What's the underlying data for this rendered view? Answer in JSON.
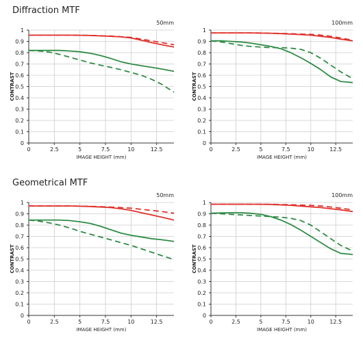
{
  "sections": [
    {
      "title": "Diffraction MTF"
    },
    {
      "title": "Geometrical MTF"
    }
  ],
  "colors": {
    "red": "#e0302a",
    "green": "#2e8b45",
    "grid": "#cccccc",
    "axis": "#333333"
  },
  "chart_data": [
    {
      "type": "line",
      "label": "50mm",
      "section": "Diffraction MTF",
      "xlabel": "IMAGE HEIGHT (mm)",
      "ylabel": "CONTRAST",
      "xlim": [
        0,
        14.2
      ],
      "ylim": [
        0,
        1
      ],
      "xticks": [
        0,
        2.5,
        5,
        7.5,
        10,
        12.5
      ],
      "yticks": [
        0,
        0.1,
        0.2,
        0.3,
        0.4,
        0.5,
        0.6,
        0.7,
        0.8,
        0.9,
        1
      ],
      "grid": true,
      "series": [
        {
          "color": "red",
          "dash": false,
          "x": [
            0,
            2,
            4,
            6,
            8,
            9,
            10,
            11,
            12,
            13,
            14.2
          ],
          "y": [
            0.955,
            0.955,
            0.955,
            0.953,
            0.945,
            0.94,
            0.93,
            0.91,
            0.89,
            0.87,
            0.85
          ]
        },
        {
          "color": "red",
          "dash": true,
          "x": [
            0,
            2,
            4,
            6,
            8,
            9,
            10,
            11,
            12,
            13,
            14.2
          ],
          "y": [
            0.955,
            0.955,
            0.955,
            0.953,
            0.947,
            0.942,
            0.935,
            0.92,
            0.905,
            0.89,
            0.87
          ]
        },
        {
          "color": "green",
          "dash": false,
          "x": [
            0,
            1,
            2,
            3,
            4,
            5,
            6,
            7,
            8,
            9,
            10,
            11,
            12,
            13,
            14.2
          ],
          "y": [
            0.82,
            0.82,
            0.82,
            0.82,
            0.815,
            0.808,
            0.795,
            0.775,
            0.75,
            0.72,
            0.7,
            0.685,
            0.67,
            0.655,
            0.635
          ]
        },
        {
          "color": "green",
          "dash": true,
          "x": [
            0,
            1,
            2,
            3,
            4,
            5,
            6,
            7,
            8,
            9,
            10,
            11,
            12,
            13,
            14.2
          ],
          "y": [
            0.82,
            0.815,
            0.805,
            0.785,
            0.76,
            0.735,
            0.71,
            0.69,
            0.67,
            0.65,
            0.625,
            0.6,
            0.565,
            0.52,
            0.45
          ]
        }
      ]
    },
    {
      "type": "line",
      "label": "100mm",
      "section": "Diffraction MTF",
      "xlabel": "IMAGE HEIGHT (mm)",
      "ylabel": "CONTRAST",
      "xlim": [
        0,
        14.2
      ],
      "ylim": [
        0,
        1
      ],
      "xticks": [
        0,
        2.5,
        5,
        7.5,
        10,
        12.5
      ],
      "yticks": [
        0,
        0.1,
        0.2,
        0.3,
        0.4,
        0.5,
        0.6,
        0.7,
        0.8,
        0.9,
        1
      ],
      "grid": true,
      "series": [
        {
          "color": "red",
          "dash": false,
          "x": [
            0,
            2,
            4,
            6,
            8,
            10,
            11,
            12,
            13,
            14.2
          ],
          "y": [
            0.975,
            0.975,
            0.975,
            0.972,
            0.965,
            0.955,
            0.945,
            0.935,
            0.92,
            0.905
          ]
        },
        {
          "color": "red",
          "dash": true,
          "x": [
            0,
            2,
            4,
            6,
            8,
            10,
            11,
            12,
            13,
            14.2
          ],
          "y": [
            0.975,
            0.975,
            0.975,
            0.973,
            0.968,
            0.962,
            0.955,
            0.945,
            0.93,
            0.91
          ]
        },
        {
          "color": "green",
          "dash": false,
          "x": [
            0,
            1,
            2,
            3,
            4,
            5,
            6,
            7,
            8,
            9,
            10,
            11,
            12,
            13,
            14.2
          ],
          "y": [
            0.905,
            0.905,
            0.9,
            0.895,
            0.885,
            0.87,
            0.855,
            0.835,
            0.8,
            0.755,
            0.705,
            0.65,
            0.585,
            0.545,
            0.535
          ]
        },
        {
          "color": "green",
          "dash": true,
          "x": [
            0,
            1,
            2,
            3,
            4,
            5,
            6,
            7,
            8,
            9,
            10,
            11,
            12,
            13,
            14.2
          ],
          "y": [
            0.905,
            0.895,
            0.88,
            0.865,
            0.855,
            0.85,
            0.845,
            0.845,
            0.84,
            0.83,
            0.8,
            0.75,
            0.69,
            0.63,
            0.57
          ]
        }
      ]
    },
    {
      "type": "line",
      "label": "50mm",
      "section": "Geometrical MTF",
      "xlabel": "IMAGE HEIGHT (mm)",
      "ylabel": "CONTRAST",
      "xlim": [
        0,
        14.2
      ],
      "ylim": [
        0,
        1
      ],
      "xticks": [
        0,
        2.5,
        5,
        7.5,
        10,
        12.5
      ],
      "yticks": [
        0,
        0.1,
        0.2,
        0.3,
        0.4,
        0.5,
        0.6,
        0.7,
        0.8,
        0.9,
        1
      ],
      "grid": true,
      "series": [
        {
          "color": "red",
          "dash": false,
          "x": [
            0,
            2,
            4,
            6,
            8,
            9,
            10,
            11,
            12,
            13,
            14.2
          ],
          "y": [
            0.97,
            0.97,
            0.97,
            0.965,
            0.955,
            0.945,
            0.93,
            0.91,
            0.89,
            0.87,
            0.845
          ]
        },
        {
          "color": "red",
          "dash": true,
          "x": [
            0,
            2,
            4,
            6,
            8,
            9,
            10,
            11,
            12,
            13,
            14.2
          ],
          "y": [
            0.97,
            0.97,
            0.97,
            0.966,
            0.96,
            0.955,
            0.95,
            0.94,
            0.93,
            0.92,
            0.905
          ]
        },
        {
          "color": "green",
          "dash": false,
          "x": [
            0,
            1,
            2,
            3,
            4,
            5,
            6,
            7,
            8,
            9,
            10,
            11,
            12,
            13,
            14.2
          ],
          "y": [
            0.845,
            0.845,
            0.845,
            0.845,
            0.84,
            0.83,
            0.815,
            0.79,
            0.76,
            0.73,
            0.71,
            0.695,
            0.68,
            0.67,
            0.655
          ]
        },
        {
          "color": "green",
          "dash": true,
          "x": [
            0,
            1,
            2,
            3,
            4,
            5,
            6,
            7,
            8,
            9,
            10,
            11,
            12,
            13,
            14.2
          ],
          "y": [
            0.845,
            0.835,
            0.82,
            0.8,
            0.775,
            0.745,
            0.72,
            0.695,
            0.67,
            0.645,
            0.62,
            0.59,
            0.56,
            0.53,
            0.495
          ]
        }
      ]
    },
    {
      "type": "line",
      "label": "100mm",
      "section": "Geometrical MTF",
      "xlabel": "IMAGE HEIGHT (mm)",
      "ylabel": "CONTRAST",
      "xlim": [
        0,
        14.2
      ],
      "ylim": [
        0,
        1
      ],
      "xticks": [
        0,
        2.5,
        5,
        7.5,
        10,
        12.5
      ],
      "yticks": [
        0,
        0.1,
        0.2,
        0.3,
        0.4,
        0.5,
        0.6,
        0.7,
        0.8,
        0.9,
        1
      ],
      "grid": true,
      "series": [
        {
          "color": "red",
          "dash": false,
          "x": [
            0,
            2,
            4,
            6,
            8,
            10,
            11,
            12,
            13,
            14.2
          ],
          "y": [
            0.985,
            0.985,
            0.985,
            0.983,
            0.975,
            0.962,
            0.955,
            0.945,
            0.935,
            0.92
          ]
        },
        {
          "color": "red",
          "dash": true,
          "x": [
            0,
            2,
            4,
            6,
            8,
            10,
            11,
            12,
            13,
            14.2
          ],
          "y": [
            0.985,
            0.985,
            0.985,
            0.984,
            0.98,
            0.975,
            0.97,
            0.96,
            0.95,
            0.935
          ]
        },
        {
          "color": "green",
          "dash": false,
          "x": [
            0,
            1,
            2,
            3,
            4,
            5,
            6,
            7,
            8,
            9,
            10,
            11,
            12,
            13,
            14.2
          ],
          "y": [
            0.905,
            0.908,
            0.91,
            0.91,
            0.905,
            0.895,
            0.875,
            0.845,
            0.805,
            0.755,
            0.7,
            0.645,
            0.59,
            0.55,
            0.54
          ]
        },
        {
          "color": "green",
          "dash": true,
          "x": [
            0,
            1,
            2,
            3,
            4,
            5,
            6,
            7,
            8,
            9,
            10,
            11,
            12,
            13,
            14.2
          ],
          "y": [
            0.905,
            0.9,
            0.895,
            0.89,
            0.885,
            0.88,
            0.875,
            0.87,
            0.86,
            0.84,
            0.8,
            0.74,
            0.68,
            0.62,
            0.57
          ]
        }
      ]
    }
  ]
}
